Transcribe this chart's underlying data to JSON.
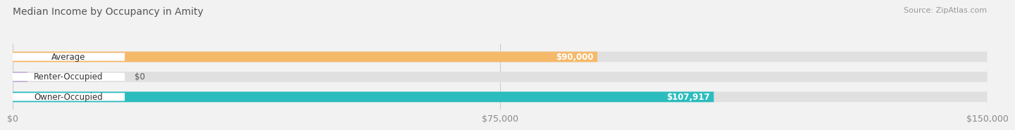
{
  "title": "Median Income by Occupancy in Amity",
  "source": "Source: ZipAtlas.com",
  "categories": [
    "Owner-Occupied",
    "Renter-Occupied",
    "Average"
  ],
  "values": [
    107917,
    0,
    90000
  ],
  "bar_colors": [
    "#2bbcbd",
    "#c4afd6",
    "#f5b96a"
  ],
  "bar_labels": [
    "$107,917",
    "$0",
    "$90,000"
  ],
  "xlim": [
    0,
    150000
  ],
  "xticks": [
    0,
    75000,
    150000
  ],
  "xtick_labels": [
    "$0",
    "$75,000",
    "$150,000"
  ],
  "bg_color": "#f2f2f2",
  "bar_bg_color": "#e0e0e0",
  "title_fontsize": 10,
  "source_fontsize": 8,
  "tick_fontsize": 9,
  "bar_height": 0.52,
  "fig_width": 14.06,
  "fig_height": 1.96
}
